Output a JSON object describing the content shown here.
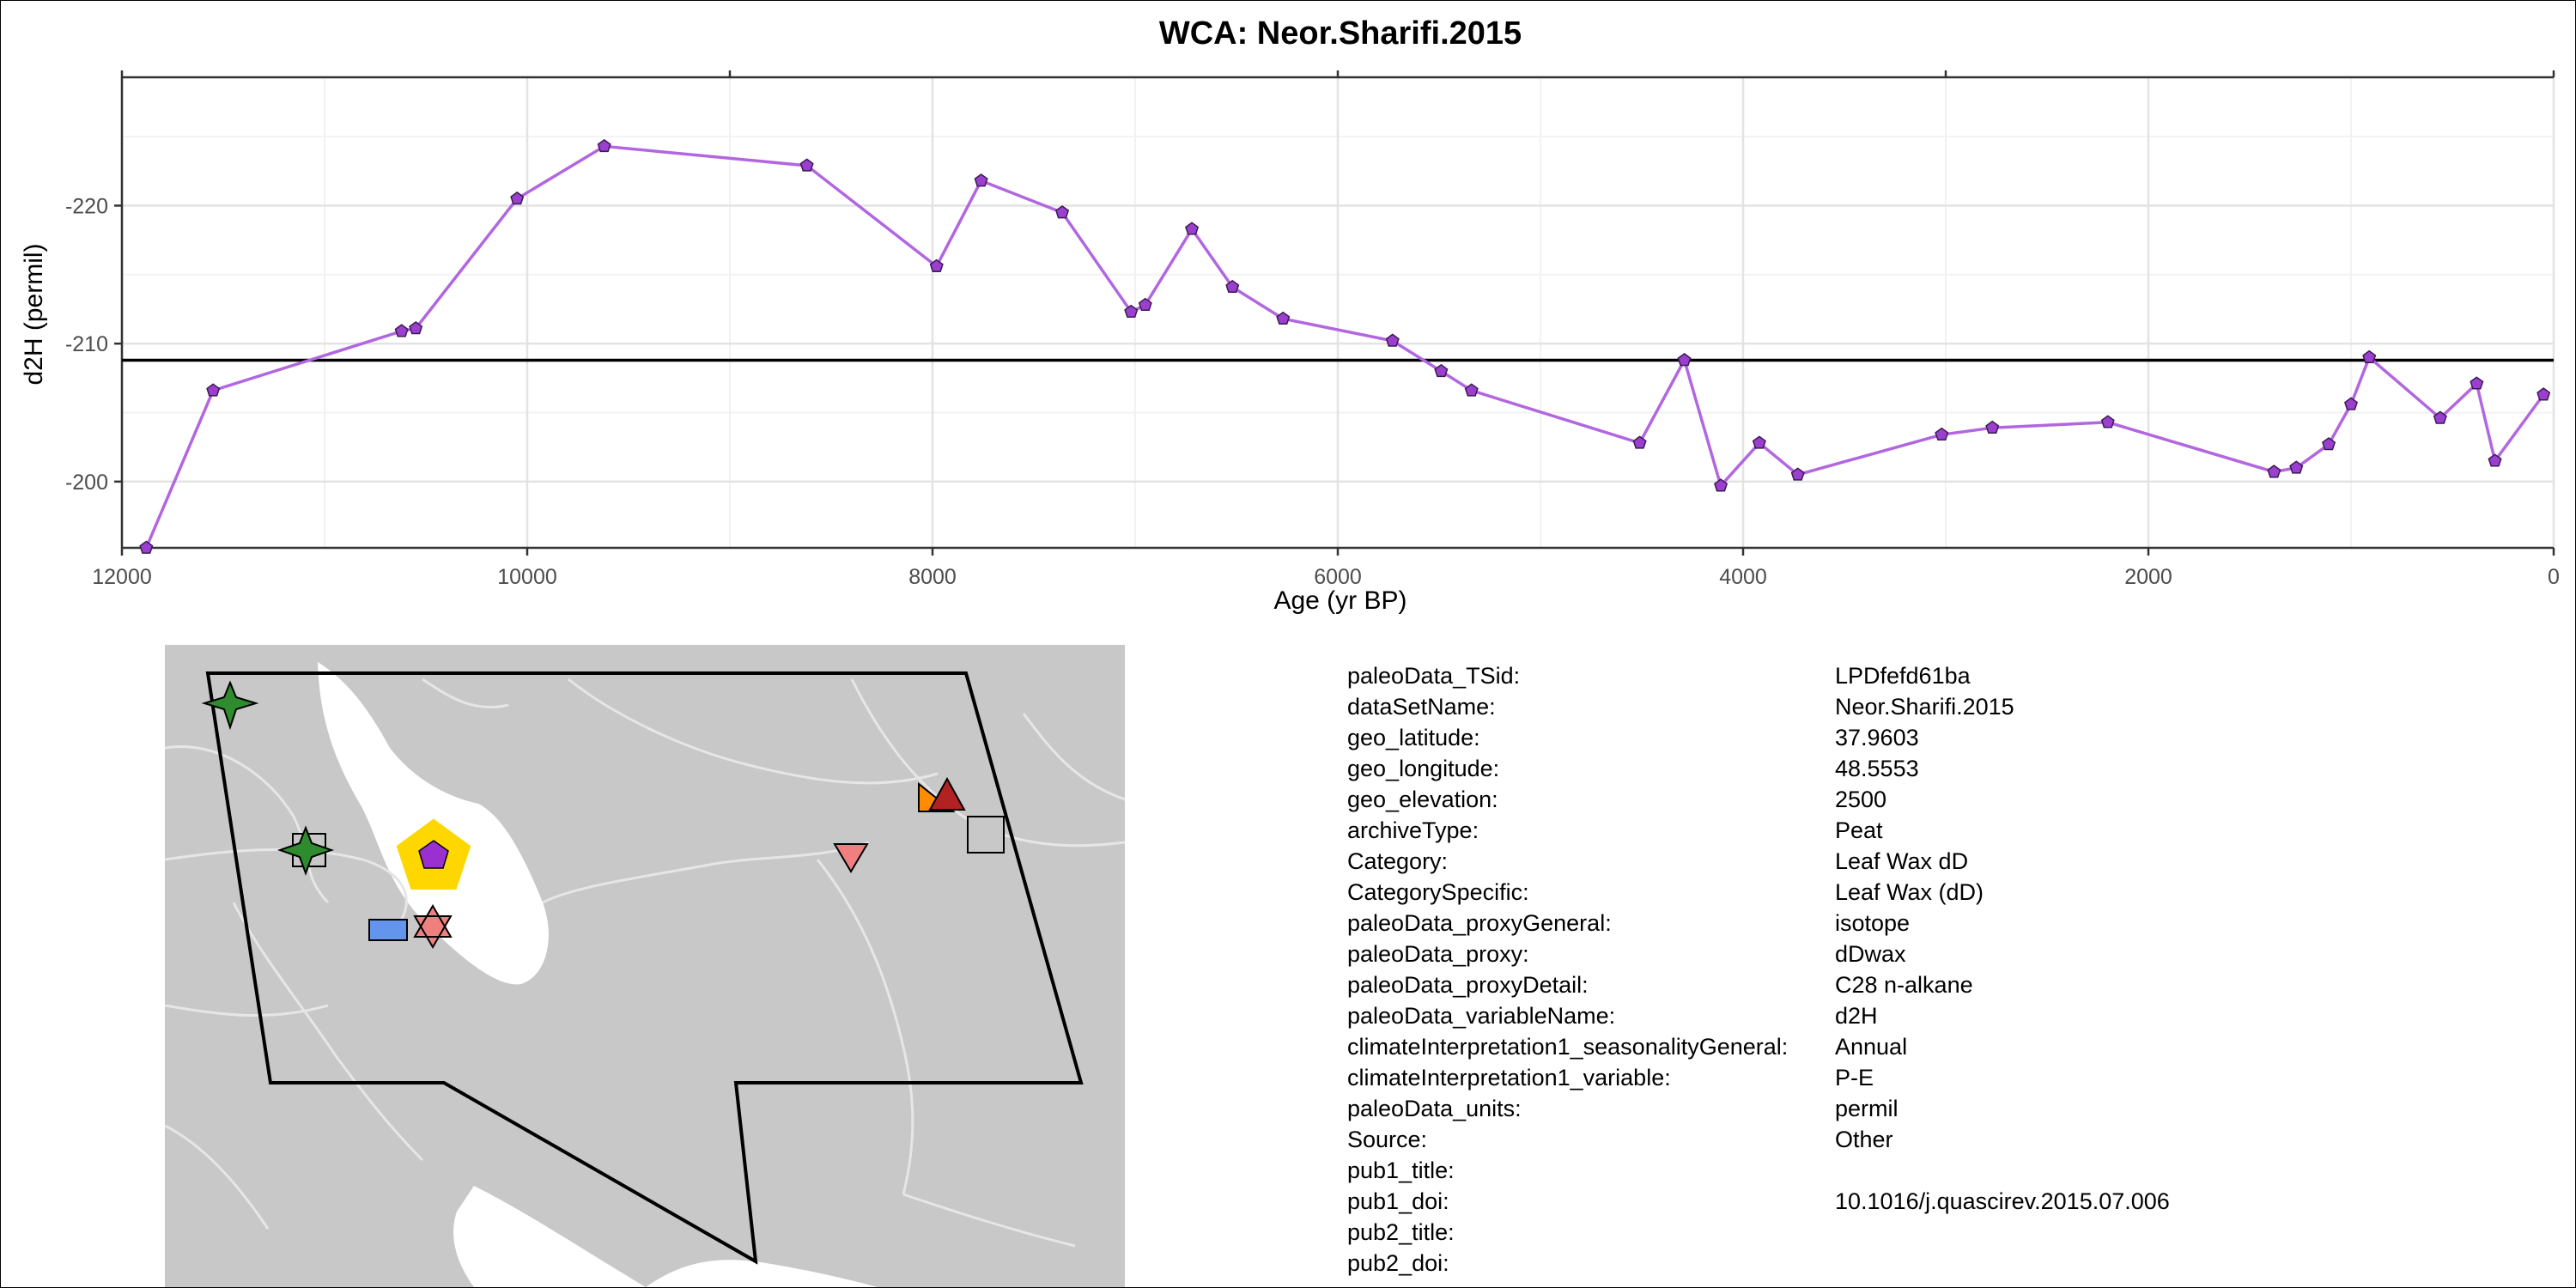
{
  "chart_data": {
    "type": "line",
    "title": "WCA: Neor.Sharifi.2015",
    "xlabel": "Age (yr BP)",
    "ylabel": "d2H (permil)",
    "xlim": [
      12000,
      0
    ],
    "ylim": [
      -195.2,
      -229.3
    ],
    "x_reversed": true,
    "y_reversed": true,
    "xticks": [
      12000,
      10000,
      8000,
      6000,
      4000,
      2000,
      0
    ],
    "xtick_labels": [
      "12000",
      "10000",
      "8000",
      "6000",
      "4000",
      "2000",
      "0"
    ],
    "yticks": [
      -220,
      -210,
      -200
    ],
    "ytick_labels": [
      "-220",
      "-210",
      "-200"
    ],
    "grid": true,
    "reference_line_y": -208.8,
    "line_color": "#b266e0",
    "marker_color": "#9b3fcf",
    "series": [
      {
        "name": "d2H",
        "x": [
          11880,
          11550,
          10620,
          10550,
          10050,
          9620,
          8620,
          7980,
          7760,
          7360,
          7020,
          6950,
          6720,
          6520,
          6270,
          5730,
          5490,
          5340,
          4510,
          4290,
          4110,
          3920,
          3730,
          3020,
          2770,
          2200,
          1380,
          1270,
          1110,
          1000,
          910,
          560,
          380,
          290,
          50
        ],
        "y": [
          -195.2,
          -206.6,
          -210.9,
          -211.1,
          -220.5,
          -224.3,
          -222.9,
          -215.6,
          -221.8,
          -219.5,
          -212.3,
          -212.8,
          -218.3,
          -214.1,
          -211.8,
          -210.2,
          -208.0,
          -206.6,
          -202.8,
          -208.8,
          -199.7,
          -202.8,
          -200.5,
          -203.4,
          -203.9,
          -204.3,
          -200.7,
          -201.0,
          -202.7,
          -205.6,
          -209.0,
          -204.6,
          -207.1,
          -201.5,
          -206.3
        ]
      }
    ]
  },
  "map": {
    "ocean_color": "#ffffff",
    "land_color": "#c8c8c8",
    "border_color": "#e8e8e8",
    "region_outline_color": "#000000",
    "site_marker_color": "#9b30d0",
    "site_highlight_color": "#ffd700",
    "markers": [
      {
        "name": "green-star-marker",
        "shape": "star4",
        "fill": "#2e8b2e"
      },
      {
        "name": "green-star-marker-2",
        "shape": "star4",
        "fill": "#2e8b2e"
      },
      {
        "name": "gray-square-marker",
        "shape": "square",
        "fill": "#c8c8c8"
      },
      {
        "name": "blue-rectangle-marker",
        "shape": "rect",
        "fill": "#6495ed"
      },
      {
        "name": "pink-star-triangle-marker",
        "shape": "hexagram",
        "fill": "#f08080"
      },
      {
        "name": "pink-triangle-down-marker",
        "shape": "triangle-down",
        "fill": "#f08080"
      },
      {
        "name": "orange-triangle-marker",
        "shape": "triangle-right",
        "fill": "#ff8c00"
      },
      {
        "name": "red-triangle-marker",
        "shape": "triangle-up",
        "fill": "#b22222"
      },
      {
        "name": "gray-square-marker-2",
        "shape": "square",
        "fill": "#c8c8c8"
      }
    ]
  },
  "metadata": [
    {
      "key": "paleoData_TSid:",
      "value": "LPDfefd61ba"
    },
    {
      "key": "dataSetName:",
      "value": "Neor.Sharifi.2015"
    },
    {
      "key": "geo_latitude:",
      "value": "37.9603"
    },
    {
      "key": "geo_longitude:",
      "value": "48.5553"
    },
    {
      "key": "geo_elevation:",
      "value": "2500"
    },
    {
      "key": "archiveType:",
      "value": "Peat"
    },
    {
      "key": "Category:",
      "value": "Leaf Wax dD"
    },
    {
      "key": "CategorySpecific:",
      "value": "Leaf Wax (dD)"
    },
    {
      "key": "paleoData_proxyGeneral:",
      "value": "isotope"
    },
    {
      "key": "paleoData_proxy:",
      "value": "dDwax"
    },
    {
      "key": "paleoData_proxyDetail:",
      "value": "C28 n-alkane"
    },
    {
      "key": "paleoData_variableName:",
      "value": "d2H"
    },
    {
      "key": "climateInterpretation1_seasonalityGeneral:",
      "value": "Annual"
    },
    {
      "key": "climateInterpretation1_variable:",
      "value": "P-E"
    },
    {
      "key": "paleoData_units:",
      "value": "permil"
    },
    {
      "key": "Source:",
      "value": "Other"
    },
    {
      "key": "pub1_title:",
      "value": ""
    },
    {
      "key": "pub1_doi:",
      "value": "10.1016/j.quascirev.2015.07.006"
    },
    {
      "key": "pub2_title:",
      "value": ""
    },
    {
      "key": "pub2_doi:",
      "value": ""
    }
  ]
}
